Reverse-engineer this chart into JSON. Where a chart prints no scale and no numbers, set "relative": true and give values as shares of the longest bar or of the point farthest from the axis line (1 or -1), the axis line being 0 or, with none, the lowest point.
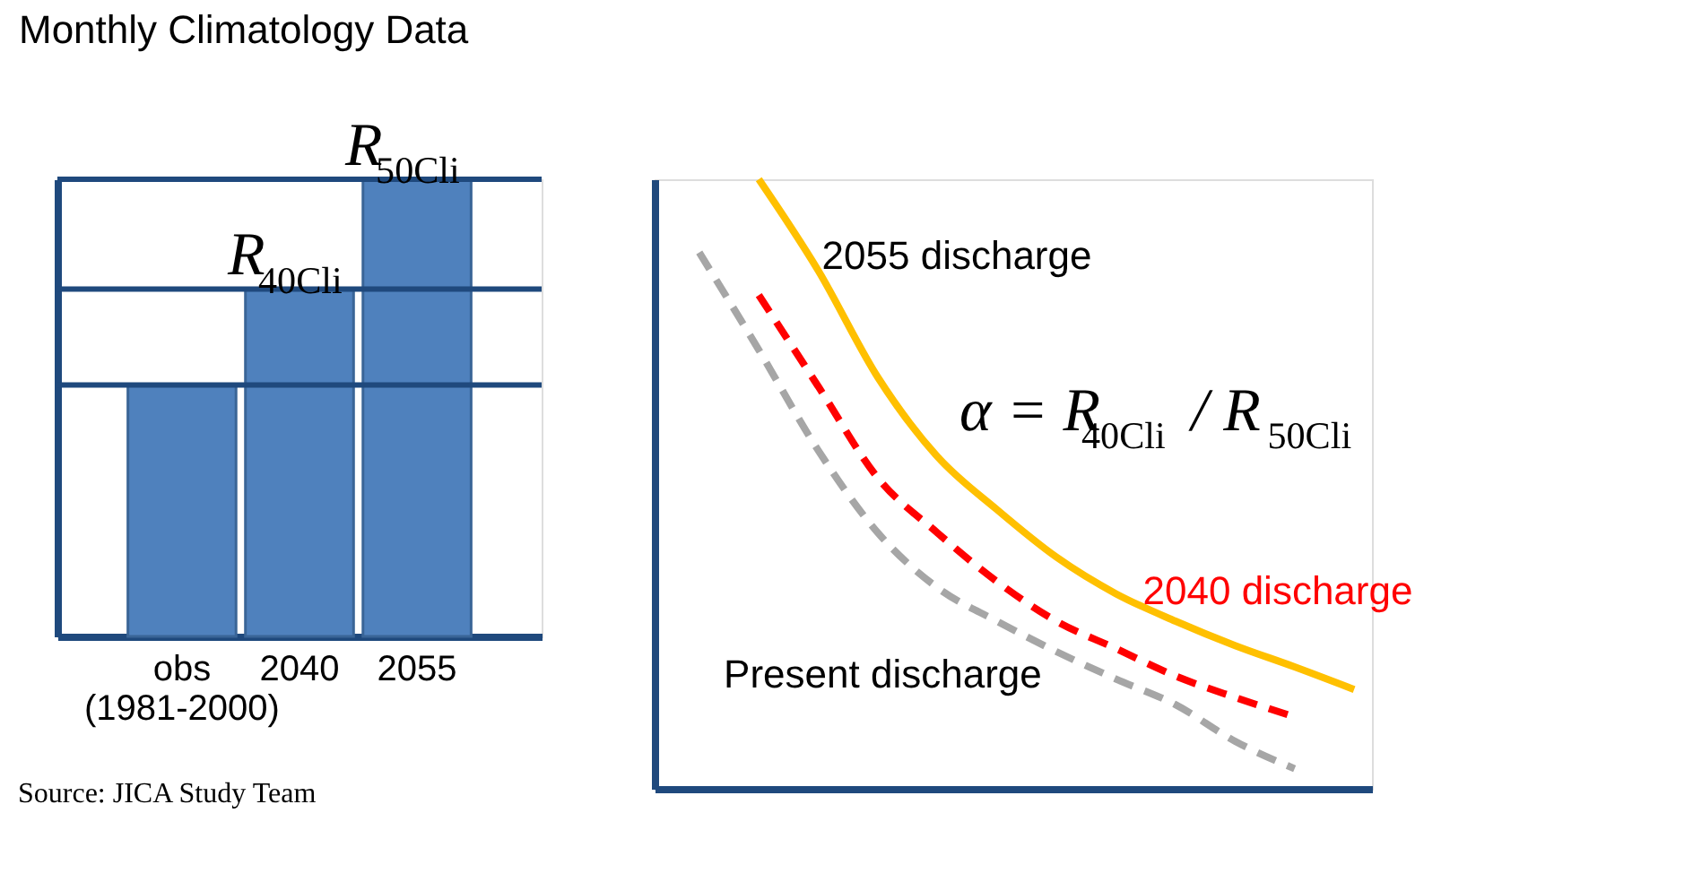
{
  "chart_data": [
    {
      "type": "bar",
      "title": "Monthly Climatology Data",
      "categories": [
        "obs\n(1981-2000)",
        "2040",
        "2055"
      ],
      "values": [
        0.55,
        0.76,
        1
      ],
      "color": "#4f81bd",
      "relative": true,
      "ref_lines": [
        {
          "axis": "y",
          "value": 0.55,
          "color": "#1f497d"
        },
        {
          "axis": "y",
          "value": 0.76,
          "color": "#1f497d"
        },
        {
          "axis": "y",
          "value": 1,
          "color": "#1f497d"
        }
      ],
      "annotations": [
        {
          "text": "R$_{40Cli}$",
          "x": "2040",
          "y": 0.76
        },
        {
          "text": "R$_{50Cli}$",
          "x": "2055",
          "y": 1
        },
        "Source: JICA Study Team"
      ]
    },
    {
      "type": "line",
      "categories": [
        null,
        null,
        null,
        null,
        null,
        null,
        null,
        null,
        null,
        null,
        null,
        null
      ],
      "relative": true,
      "marker": "none",
      "series": [
        {
          "name": "2055 discharge",
          "color": "#ffc000",
          "line_style": "solid",
          "values": [
            null,
            1.0,
            0.85,
            0.675,
            0.545,
            0.458,
            0.38,
            0.32,
            0.275,
            0.235,
            0.2,
            0.163
          ]
        },
        {
          "name": "2040 discharge",
          "color": "#ff0000",
          "line_style": "dashed",
          "values": [
            null,
            0.81,
            0.66,
            0.51,
            0.42,
            0.34,
            0.275,
            0.23,
            0.185,
            0.15,
            0.118,
            null
          ]
        },
        {
          "name": "Present discharge",
          "color": "#a6a6a6",
          "line_style": "dashed",
          "values": [
            0.88,
            0.72,
            0.555,
            0.42,
            0.33,
            0.275,
            0.225,
            0.18,
            0.138,
            0.078,
            0.033,
            null
          ]
        }
      ],
      "annotations": [
        "α = R$_{40Cli}$ / R$_{50Cli}$"
      ]
    }
  ]
}
